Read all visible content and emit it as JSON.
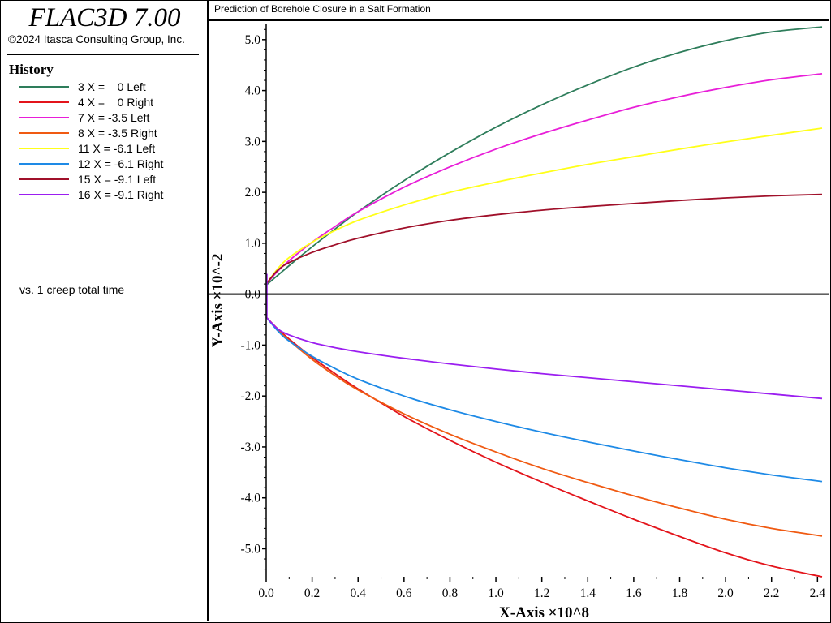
{
  "app": {
    "title": "FLAC3D 7.00",
    "copyright": "©2024 Itasca Consulting Group, Inc."
  },
  "legend": {
    "heading": "History",
    "items": [
      {
        "label": "3 X =    0 Left",
        "color": "#2e7d5b"
      },
      {
        "label": "4 X =    0 Right",
        "color": "#e3141b"
      },
      {
        "label": "7 X = -3.5 Left",
        "color": "#e81ed8"
      },
      {
        "label": "8 X = -3.5 Right",
        "color": "#f05a12"
      },
      {
        "label": "11 X = -6.1 Left",
        "color": "#ffff1a"
      },
      {
        "label": "12 X = -6.1 Right",
        "color": "#1e8ae6"
      },
      {
        "label": "15 X = -9.1 Left",
        "color": "#a0102a"
      },
      {
        "label": "16 X = -9.1 Right",
        "color": "#9b1ef0"
      }
    ],
    "vs_label": "vs. 1 creep total time"
  },
  "chart_data": {
    "type": "line",
    "title": "Prediction of Borehole Closure in a Salt Formation",
    "xlabel": "X-Axis ×10^8",
    "ylabel": "Y-Axis ×10^-2",
    "xlim": [
      0.0,
      2.42
    ],
    "ylim": [
      -5.55,
      5.3
    ],
    "x_ticks": [
      "0.0",
      "0.2",
      "0.4",
      "0.6",
      "0.8",
      "1.0",
      "1.2",
      "1.4",
      "1.6",
      "1.8",
      "2.0",
      "2.2",
      "2.4"
    ],
    "y_ticks": [
      "5.0",
      "4.0",
      "3.0",
      "2.0",
      "1.0",
      "0.0",
      "-1.0",
      "-2.0",
      "-3.0",
      "-4.0",
      "-5.0"
    ],
    "grid": false,
    "series": [
      {
        "name": "3 X =    0 Left",
        "color": "#2e7d5b",
        "x": [
          0.0,
          0.05,
          0.1,
          0.2,
          0.3,
          0.4,
          0.6,
          0.8,
          1.0,
          1.2,
          1.4,
          1.6,
          1.8,
          2.0,
          2.2,
          2.42
        ],
        "y": [
          0.18,
          0.37,
          0.56,
          0.93,
          1.28,
          1.62,
          2.23,
          2.78,
          3.28,
          3.72,
          4.11,
          4.46,
          4.75,
          4.98,
          5.15,
          5.25
        ]
      },
      {
        "name": "4 X =    0 Right",
        "color": "#e3141b",
        "x": [
          0.0,
          0.05,
          0.1,
          0.2,
          0.3,
          0.4,
          0.6,
          0.8,
          1.0,
          1.2,
          1.4,
          1.6,
          1.8,
          2.0,
          2.2,
          2.42
        ],
        "y": [
          -0.45,
          -0.68,
          -0.88,
          -1.24,
          -1.56,
          -1.86,
          -2.4,
          -2.87,
          -3.3,
          -3.69,
          -4.06,
          -4.42,
          -4.76,
          -5.08,
          -5.34,
          -5.55
        ]
      },
      {
        "name": "7 X = -3.5 Left",
        "color": "#e81ed8",
        "x": [
          0.0,
          0.05,
          0.1,
          0.2,
          0.3,
          0.4,
          0.6,
          0.8,
          1.0,
          1.2,
          1.4,
          1.6,
          1.8,
          2.0,
          2.2,
          2.42
        ],
        "y": [
          0.2,
          0.45,
          0.66,
          1.02,
          1.33,
          1.62,
          2.1,
          2.5,
          2.85,
          3.15,
          3.42,
          3.67,
          3.88,
          4.06,
          4.21,
          4.33
        ]
      },
      {
        "name": "8 X = -3.5 Right",
        "color": "#f05a12",
        "x": [
          0.0,
          0.05,
          0.1,
          0.2,
          0.3,
          0.4,
          0.6,
          0.8,
          1.0,
          1.2,
          1.4,
          1.6,
          1.8,
          2.0,
          2.2,
          2.42
        ],
        "y": [
          -0.45,
          -0.7,
          -0.91,
          -1.28,
          -1.6,
          -1.88,
          -2.35,
          -2.75,
          -3.1,
          -3.42,
          -3.7,
          -3.96,
          -4.2,
          -4.42,
          -4.6,
          -4.75
        ]
      },
      {
        "name": "11 X = -6.1 Left",
        "color": "#ffff1a",
        "x": [
          0.0,
          0.05,
          0.1,
          0.2,
          0.3,
          0.4,
          0.6,
          0.8,
          1.0,
          1.2,
          1.4,
          1.6,
          1.8,
          2.0,
          2.2,
          2.42
        ],
        "y": [
          0.2,
          0.5,
          0.72,
          1.02,
          1.25,
          1.45,
          1.75,
          2.0,
          2.2,
          2.38,
          2.55,
          2.7,
          2.85,
          2.99,
          3.12,
          3.26
        ]
      },
      {
        "name": "12 X = -6.1 Right",
        "color": "#1e8ae6",
        "x": [
          0.0,
          0.05,
          0.1,
          0.2,
          0.3,
          0.4,
          0.6,
          0.8,
          1.0,
          1.2,
          1.4,
          1.6,
          1.8,
          2.0,
          2.2,
          2.42
        ],
        "y": [
          -0.45,
          -0.72,
          -0.92,
          -1.22,
          -1.46,
          -1.67,
          -2.0,
          -2.27,
          -2.5,
          -2.71,
          -2.9,
          -3.08,
          -3.25,
          -3.41,
          -3.55,
          -3.68
        ]
      },
      {
        "name": "15 X = -9.1 Left",
        "color": "#a0102a",
        "x": [
          0.0,
          0.05,
          0.1,
          0.2,
          0.3,
          0.4,
          0.6,
          0.8,
          1.0,
          1.2,
          1.4,
          1.6,
          1.8,
          2.0,
          2.2,
          2.42
        ],
        "y": [
          0.2,
          0.47,
          0.62,
          0.82,
          0.97,
          1.1,
          1.3,
          1.45,
          1.56,
          1.65,
          1.72,
          1.78,
          1.84,
          1.89,
          1.93,
          1.96
        ]
      },
      {
        "name": "16 X = -9.1 Right",
        "color": "#9b1ef0",
        "x": [
          0.0,
          0.05,
          0.1,
          0.2,
          0.3,
          0.4,
          0.6,
          0.8,
          1.0,
          1.2,
          1.4,
          1.6,
          1.8,
          2.0,
          2.2,
          2.42
        ],
        "y": [
          -0.45,
          -0.68,
          -0.8,
          -0.95,
          -1.05,
          -1.13,
          -1.26,
          -1.37,
          -1.47,
          -1.56,
          -1.64,
          -1.72,
          -1.8,
          -1.88,
          -1.96,
          -2.05
        ]
      }
    ]
  }
}
